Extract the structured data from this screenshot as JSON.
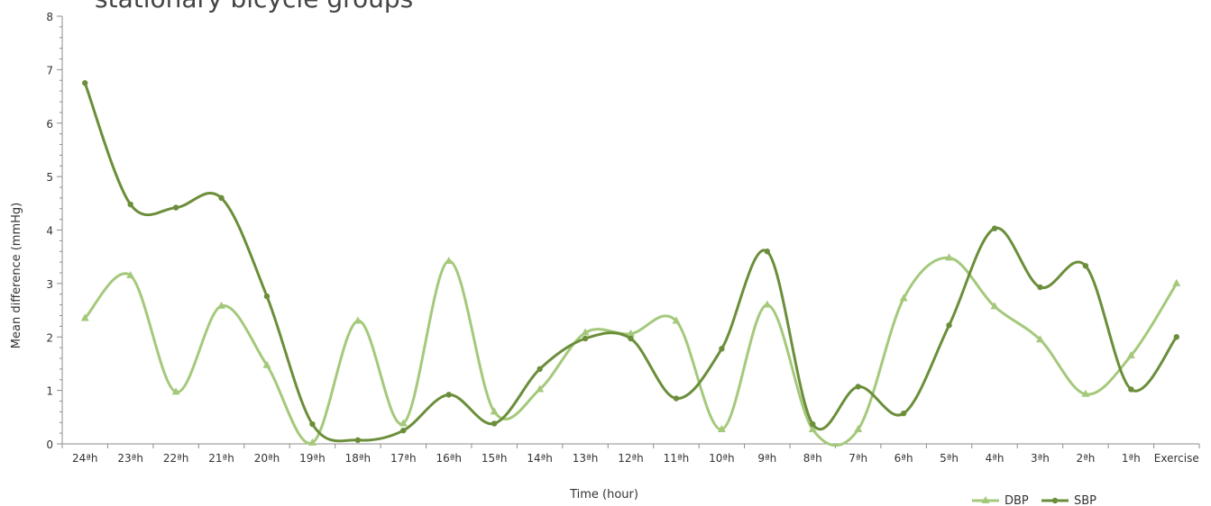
{
  "chart_data": {
    "type": "line",
    "title": "stationary bicycle groups",
    "xlabel": "Time (hour)",
    "ylabel": "Mean difference (mmHg)",
    "ylim": [
      0,
      8
    ],
    "yticks": [
      "0",
      "1",
      "2",
      "3",
      "4",
      "5",
      "6",
      "7",
      "8"
    ],
    "categories": [
      "24ªh",
      "23ªh",
      "22ªh",
      "21ªh",
      "20ªh",
      "19ªh",
      "18ªh",
      "17ªh",
      "16ªh",
      "15ªh",
      "14ªh",
      "13ªh",
      "12ªh",
      "11ªh",
      "10ªh",
      "9ªh",
      "8ªh",
      "7ªh",
      "6ªh",
      "5ªh",
      "4ªh",
      "3ªh",
      "2ªh",
      "1ªh",
      "Exercise"
    ],
    "grid": false,
    "legend_position": "bottom-right",
    "series": [
      {
        "name": "DBP",
        "color": "#a4c97b",
        "marker": "triangle",
        "values": [
          2.35,
          3.15,
          0.97,
          2.58,
          1.47,
          0.02,
          2.3,
          0.38,
          3.42,
          0.6,
          1.02,
          2.08,
          2.06,
          2.3,
          0.27,
          2.6,
          0.27,
          0.27,
          2.72,
          3.48,
          2.57,
          1.95,
          0.93,
          1.65,
          3.0
        ]
      },
      {
        "name": "SBP",
        "color": "#6b8e3a",
        "marker": "circle",
        "values": [
          6.75,
          4.48,
          4.42,
          4.6,
          2.76,
          0.37,
          0.07,
          0.25,
          0.92,
          0.38,
          1.4,
          1.97,
          1.97,
          0.85,
          1.78,
          3.6,
          0.37,
          1.07,
          0.57,
          2.22,
          4.03,
          2.93,
          3.33,
          1.02,
          2.0
        ]
      }
    ]
  }
}
